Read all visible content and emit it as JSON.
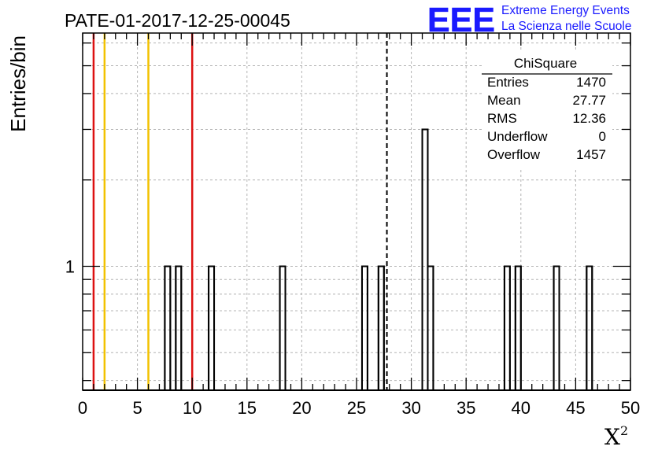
{
  "chart_data": {
    "type": "histogram",
    "title": "PATE-01-2017-12-25-00045",
    "xlabel": "X",
    "xlabel_superscript": "2",
    "ylabel": "Entries/bin",
    "xlim": [
      0,
      50
    ],
    "ylog": true,
    "ylim": [
      0.37,
      6.5
    ],
    "xticks": [
      "0",
      "5",
      "10",
      "15",
      "20",
      "25",
      "30",
      "35",
      "40",
      "45",
      "50"
    ],
    "xtick_values": [
      0,
      5,
      10,
      15,
      20,
      25,
      30,
      35,
      40,
      45,
      50
    ],
    "yticks": [
      "1"
    ],
    "ytick_values": [
      1
    ],
    "grid": true,
    "bin_width": 0.5,
    "bins": [
      {
        "x0": 7.5,
        "count": 1
      },
      {
        "x0": 8.5,
        "count": 1
      },
      {
        "x0": 11.5,
        "count": 1
      },
      {
        "x0": 18.0,
        "count": 1
      },
      {
        "x0": 25.5,
        "count": 1
      },
      {
        "x0": 27.0,
        "count": 1
      },
      {
        "x0": 31.0,
        "count": 3
      },
      {
        "x0": 31.5,
        "count": 1
      },
      {
        "x0": 38.5,
        "count": 1
      },
      {
        "x0": 39.5,
        "count": 1
      },
      {
        "x0": 43.0,
        "count": 1
      },
      {
        "x0": 46.0,
        "count": 1
      }
    ],
    "vertical_lines": [
      {
        "x": 1,
        "color": "#dd1111",
        "style": "solid"
      },
      {
        "x": 2,
        "color": "#f2c200",
        "style": "solid"
      },
      {
        "x": 6,
        "color": "#f2c200",
        "style": "solid"
      },
      {
        "x": 10,
        "color": "#dd1111",
        "style": "solid"
      },
      {
        "x": 27.77,
        "color": "#000000",
        "style": "dashed"
      }
    ],
    "stats_box": {
      "title": "ChiSquare",
      "rows": [
        {
          "label": "Entries",
          "value": "1470"
        },
        {
          "label": "Mean",
          "value": "27.77"
        },
        {
          "label": "RMS",
          "value": "12.36"
        },
        {
          "label": "Underflow",
          "value": "0"
        },
        {
          "label": "Overflow",
          "value": "1457"
        }
      ]
    }
  },
  "logo": {
    "text": "EEE",
    "line1": "Extreme Energy Events",
    "line2": "La Scienza nelle Scuole",
    "color": "#1a1aff"
  }
}
